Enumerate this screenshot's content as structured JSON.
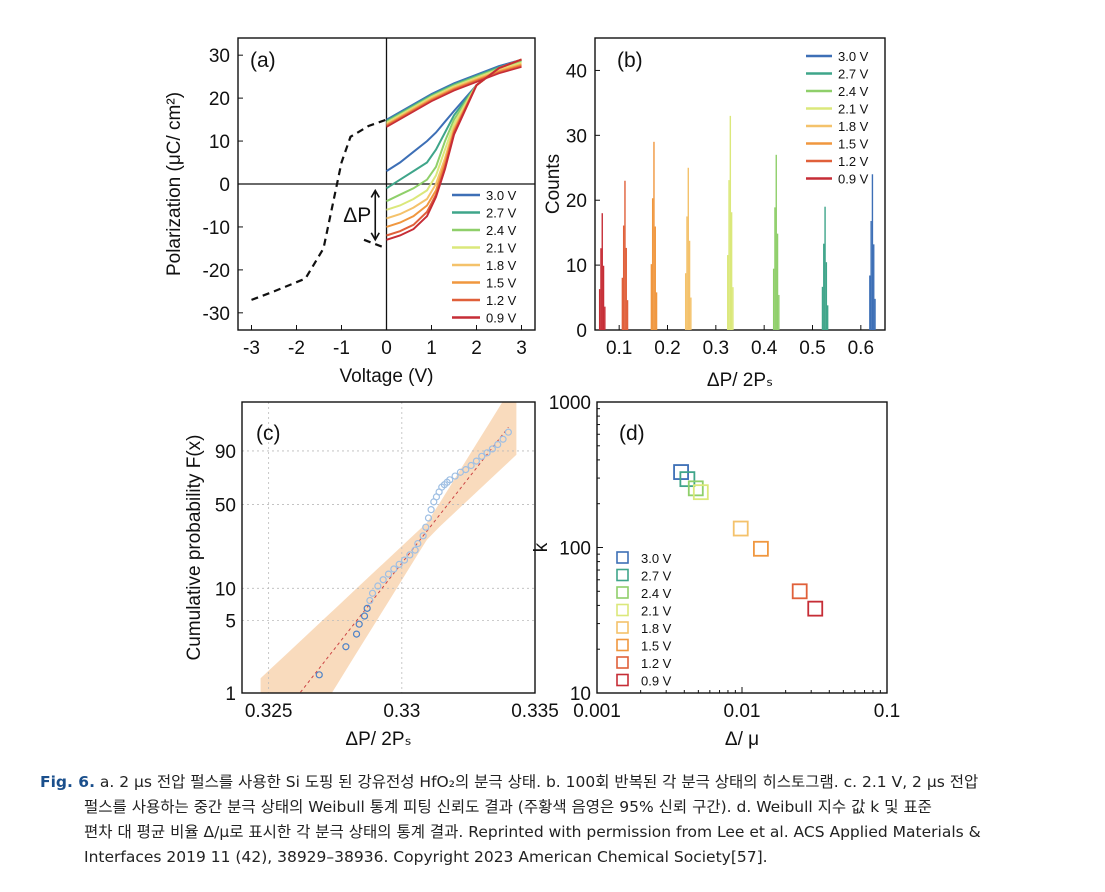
{
  "figure": {
    "panels": {
      "a": {
        "label": "(a)"
      },
      "b": {
        "label": "(b)"
      },
      "c": {
        "label": "(c)"
      },
      "d": {
        "label": "(d)"
      }
    },
    "legend_voltages": [
      "3.0 V",
      "2.7 V",
      "2.4 V",
      "2.1 V",
      "1.8 V",
      "1.5 V",
      "1.2 V",
      "0.9 V"
    ],
    "colors": [
      "#3d6fb6",
      "#3fa58a",
      "#8fcf6a",
      "#dbe87b",
      "#f4c26b",
      "#f0973f",
      "#e0603a",
      "#c62d36"
    ],
    "caption": {
      "label": "Fig. 6.",
      "line1": " a. 2 μs 전압 펄스를 사용한 Si 도핑 된 강유전성 HfO₂의 분극 상태. b. 100회 반복된 각 분극 상태의 히스토그램. c. 2.1 V, 2 μs 전압",
      "line2": "펄스를 사용하는 중간 분극 상태의 Weibull 통계 피팅 신뢰도 결과 (주황색 음영은 95% 신뢰 구간). d. Weibull 지수 값 k 및 표준",
      "line3": "편차 대 평균 비율 Δ/μ로 표시한 각 분극 상태의 통계 결과. Reprinted with permission from Lee et al. ACS Applied Materials &",
      "line4": "Interfaces 2019 11 (42), 38929–38936. Copyright 2023 American Chemical Society[57]."
    }
  },
  "chart_data": [
    {
      "panel": "a",
      "type": "line",
      "xlabel": "Voltage (V)",
      "ylabel": "Polarization (μC/ cm²)",
      "annotation": "ΔP",
      "xlim": [
        -3.3,
        3.3
      ],
      "ylim": [
        -34,
        34
      ],
      "xticks": [
        -3,
        -2,
        -1,
        0,
        1,
        2,
        3
      ],
      "yticks": [
        -30,
        -20,
        -10,
        0,
        10,
        20,
        30
      ],
      "hysteresis_dashed": {
        "x": [
          -3,
          -2.5,
          -1.8,
          -1.4,
          -1.2,
          -1.0,
          -0.8,
          -0.4,
          0
        ],
        "y": [
          -27,
          -25,
          -22,
          -15,
          -5,
          5,
          11,
          13.5,
          15
        ]
      },
      "dashed_return": {
        "x": [
          -0.5,
          0
        ],
        "y": [
          -13,
          -15
        ]
      },
      "series": [
        {
          "name": "3.0 V",
          "x": [
            0,
            0.3,
            0.6,
            0.9,
            1.1,
            1.3,
            1.5,
            2.0,
            2.5,
            3.0
          ],
          "y": [
            3,
            5,
            7.5,
            10,
            12,
            14.5,
            17,
            23,
            27,
            29
          ]
        },
        {
          "name": "2.7 V",
          "x": [
            0,
            0.3,
            0.6,
            0.9,
            1.1,
            1.3,
            1.5,
            2.0,
            2.5,
            3.0
          ],
          "y": [
            -1,
            1,
            3,
            5,
            8,
            12,
            16,
            23,
            27,
            29
          ]
        },
        {
          "name": "2.4 V",
          "x": [
            0,
            0.3,
            0.6,
            0.9,
            1.1,
            1.3,
            1.5,
            2.0,
            2.5,
            3.0
          ],
          "y": [
            -4,
            -2.5,
            -1,
            1,
            4,
            10,
            15,
            23,
            27,
            29
          ]
        },
        {
          "name": "2.1 V",
          "x": [
            0,
            0.3,
            0.6,
            0.9,
            1.1,
            1.3,
            1.5,
            2.0,
            2.5,
            3.0
          ],
          "y": [
            -6,
            -5,
            -3.5,
            -1.5,
            2,
            8,
            14,
            23,
            27,
            29
          ]
        },
        {
          "name": "1.8 V",
          "x": [
            0,
            0.3,
            0.6,
            0.9,
            1.1,
            1.3,
            1.5,
            2.0,
            2.5,
            3.0
          ],
          "y": [
            -8,
            -7,
            -5.5,
            -3.5,
            0,
            6,
            13,
            23,
            27,
            29
          ]
        },
        {
          "name": "1.5 V",
          "x": [
            0,
            0.3,
            0.6,
            0.9,
            1.1,
            1.3,
            1.5,
            2.0,
            2.5,
            3.0
          ],
          "y": [
            -10,
            -9,
            -7.5,
            -5,
            -1.5,
            5,
            12.5,
            23,
            27,
            29
          ]
        },
        {
          "name": "1.2 V",
          "x": [
            0,
            0.3,
            0.6,
            0.9,
            1.1,
            1.3,
            1.5,
            2.0,
            2.5,
            3.0
          ],
          "y": [
            -12,
            -11,
            -9.5,
            -6.5,
            -2.5,
            4,
            12,
            23,
            27,
            29
          ]
        },
        {
          "name": "0.9 V",
          "x": [
            0,
            0.3,
            0.6,
            0.9,
            1.1,
            1.3,
            1.5,
            2.0,
            2.5,
            3.0
          ],
          "y": [
            -13,
            -12,
            -10.5,
            -7.5,
            -3,
            3.5,
            11.5,
            23,
            27,
            29
          ]
        }
      ],
      "upper_branch": {
        "x": [
          0,
          0.5,
          1.0,
          1.5,
          2.0,
          2.5,
          3.0
        ],
        "y": [
          15,
          18,
          21,
          23.5,
          25.5,
          27.5,
          29
        ]
      }
    },
    {
      "panel": "b",
      "type": "bar",
      "xlabel": "ΔP/ 2Pₛ",
      "ylabel": "Counts",
      "xlim": [
        0.05,
        0.65
      ],
      "ylim": [
        0,
        45
      ],
      "xticks": [
        0.1,
        0.2,
        0.3,
        0.4,
        0.5,
        0.6
      ],
      "yticks": [
        0,
        10,
        20,
        30,
        40
      ],
      "series": [
        {
          "name": "3.0 V",
          "x": 0.624,
          "peak": 24
        },
        {
          "name": "2.7 V",
          "x": 0.526,
          "peak": 19
        },
        {
          "name": "2.4 V",
          "x": 0.425,
          "peak": 27
        },
        {
          "name": "2.1 V",
          "x": 0.33,
          "peak": 33
        },
        {
          "name": "1.8 V",
          "x": 0.243,
          "peak": 25
        },
        {
          "name": "1.5 V",
          "x": 0.172,
          "peak": 29
        },
        {
          "name": "1.2 V",
          "x": 0.112,
          "peak": 23
        },
        {
          "name": "0.9 V",
          "x": 0.065,
          "peak": 18
        }
      ]
    },
    {
      "panel": "c",
      "type": "scatter",
      "xlabel": "ΔP/ 2Pₛ",
      "ylabel": "Cumulative probability F(x)",
      "xlim": [
        0.324,
        0.335
      ],
      "ylim_log_percent": [
        1,
        99.9
      ],
      "xticks": [
        0.325,
        0.33,
        0.335
      ],
      "yticks": [
        1,
        5,
        10,
        50,
        90
      ],
      "points_x": [
        0.3269,
        0.3279,
        0.3283,
        0.3284,
        0.3286,
        0.3287,
        0.3288,
        0.3289,
        0.3291,
        0.3293,
        0.3295,
        0.3297,
        0.3299,
        0.3301,
        0.3303,
        0.3305,
        0.3306,
        0.3308,
        0.3309,
        0.331,
        0.3311,
        0.3312,
        0.3313,
        0.3314,
        0.3315,
        0.3316,
        0.3317,
        0.3318,
        0.332,
        0.3322,
        0.3324,
        0.3326,
        0.3328,
        0.333,
        0.3332,
        0.3334,
        0.3336,
        0.3338,
        0.334
      ],
      "points_F": [
        1.5,
        2.8,
        3.7,
        4.6,
        5.5,
        6.5,
        7.7,
        9.0,
        10.5,
        12,
        13.5,
        15,
        16.5,
        18,
        20,
        22,
        25,
        29,
        34,
        40,
        46,
        52,
        56,
        60,
        64,
        66,
        68,
        70,
        73,
        76,
        78,
        81,
        84,
        87,
        89,
        91,
        93,
        95,
        97
      ],
      "fit_line": {
        "x": [
          0.3255,
          0.334
        ],
        "F": [
          0.6,
          98
        ]
      },
      "band_label": "95% CI"
    },
    {
      "panel": "d",
      "type": "scatter",
      "xlabel": "Δ/ μ",
      "ylabel": "k",
      "xscale": "log",
      "yscale": "log",
      "xlim": [
        0.001,
        0.1
      ],
      "ylim": [
        10,
        1000
      ],
      "xticks": [
        0.001,
        0.01,
        0.1
      ],
      "yticks": [
        10,
        100,
        1000
      ],
      "series": [
        {
          "name": "3.0 V",
          "x": 0.0038,
          "y": 330
        },
        {
          "name": "2.7 V",
          "x": 0.0042,
          "y": 295
        },
        {
          "name": "2.4 V",
          "x": 0.0048,
          "y": 255
        },
        {
          "name": "2.1 V",
          "x": 0.0052,
          "y": 240
        },
        {
          "name": "1.8 V",
          "x": 0.0098,
          "y": 135
        },
        {
          "name": "1.5 V",
          "x": 0.0135,
          "y": 98
        },
        {
          "name": "1.2 V",
          "x": 0.025,
          "y": 50
        },
        {
          "name": "0.9 V",
          "x": 0.032,
          "y": 38
        }
      ]
    }
  ]
}
